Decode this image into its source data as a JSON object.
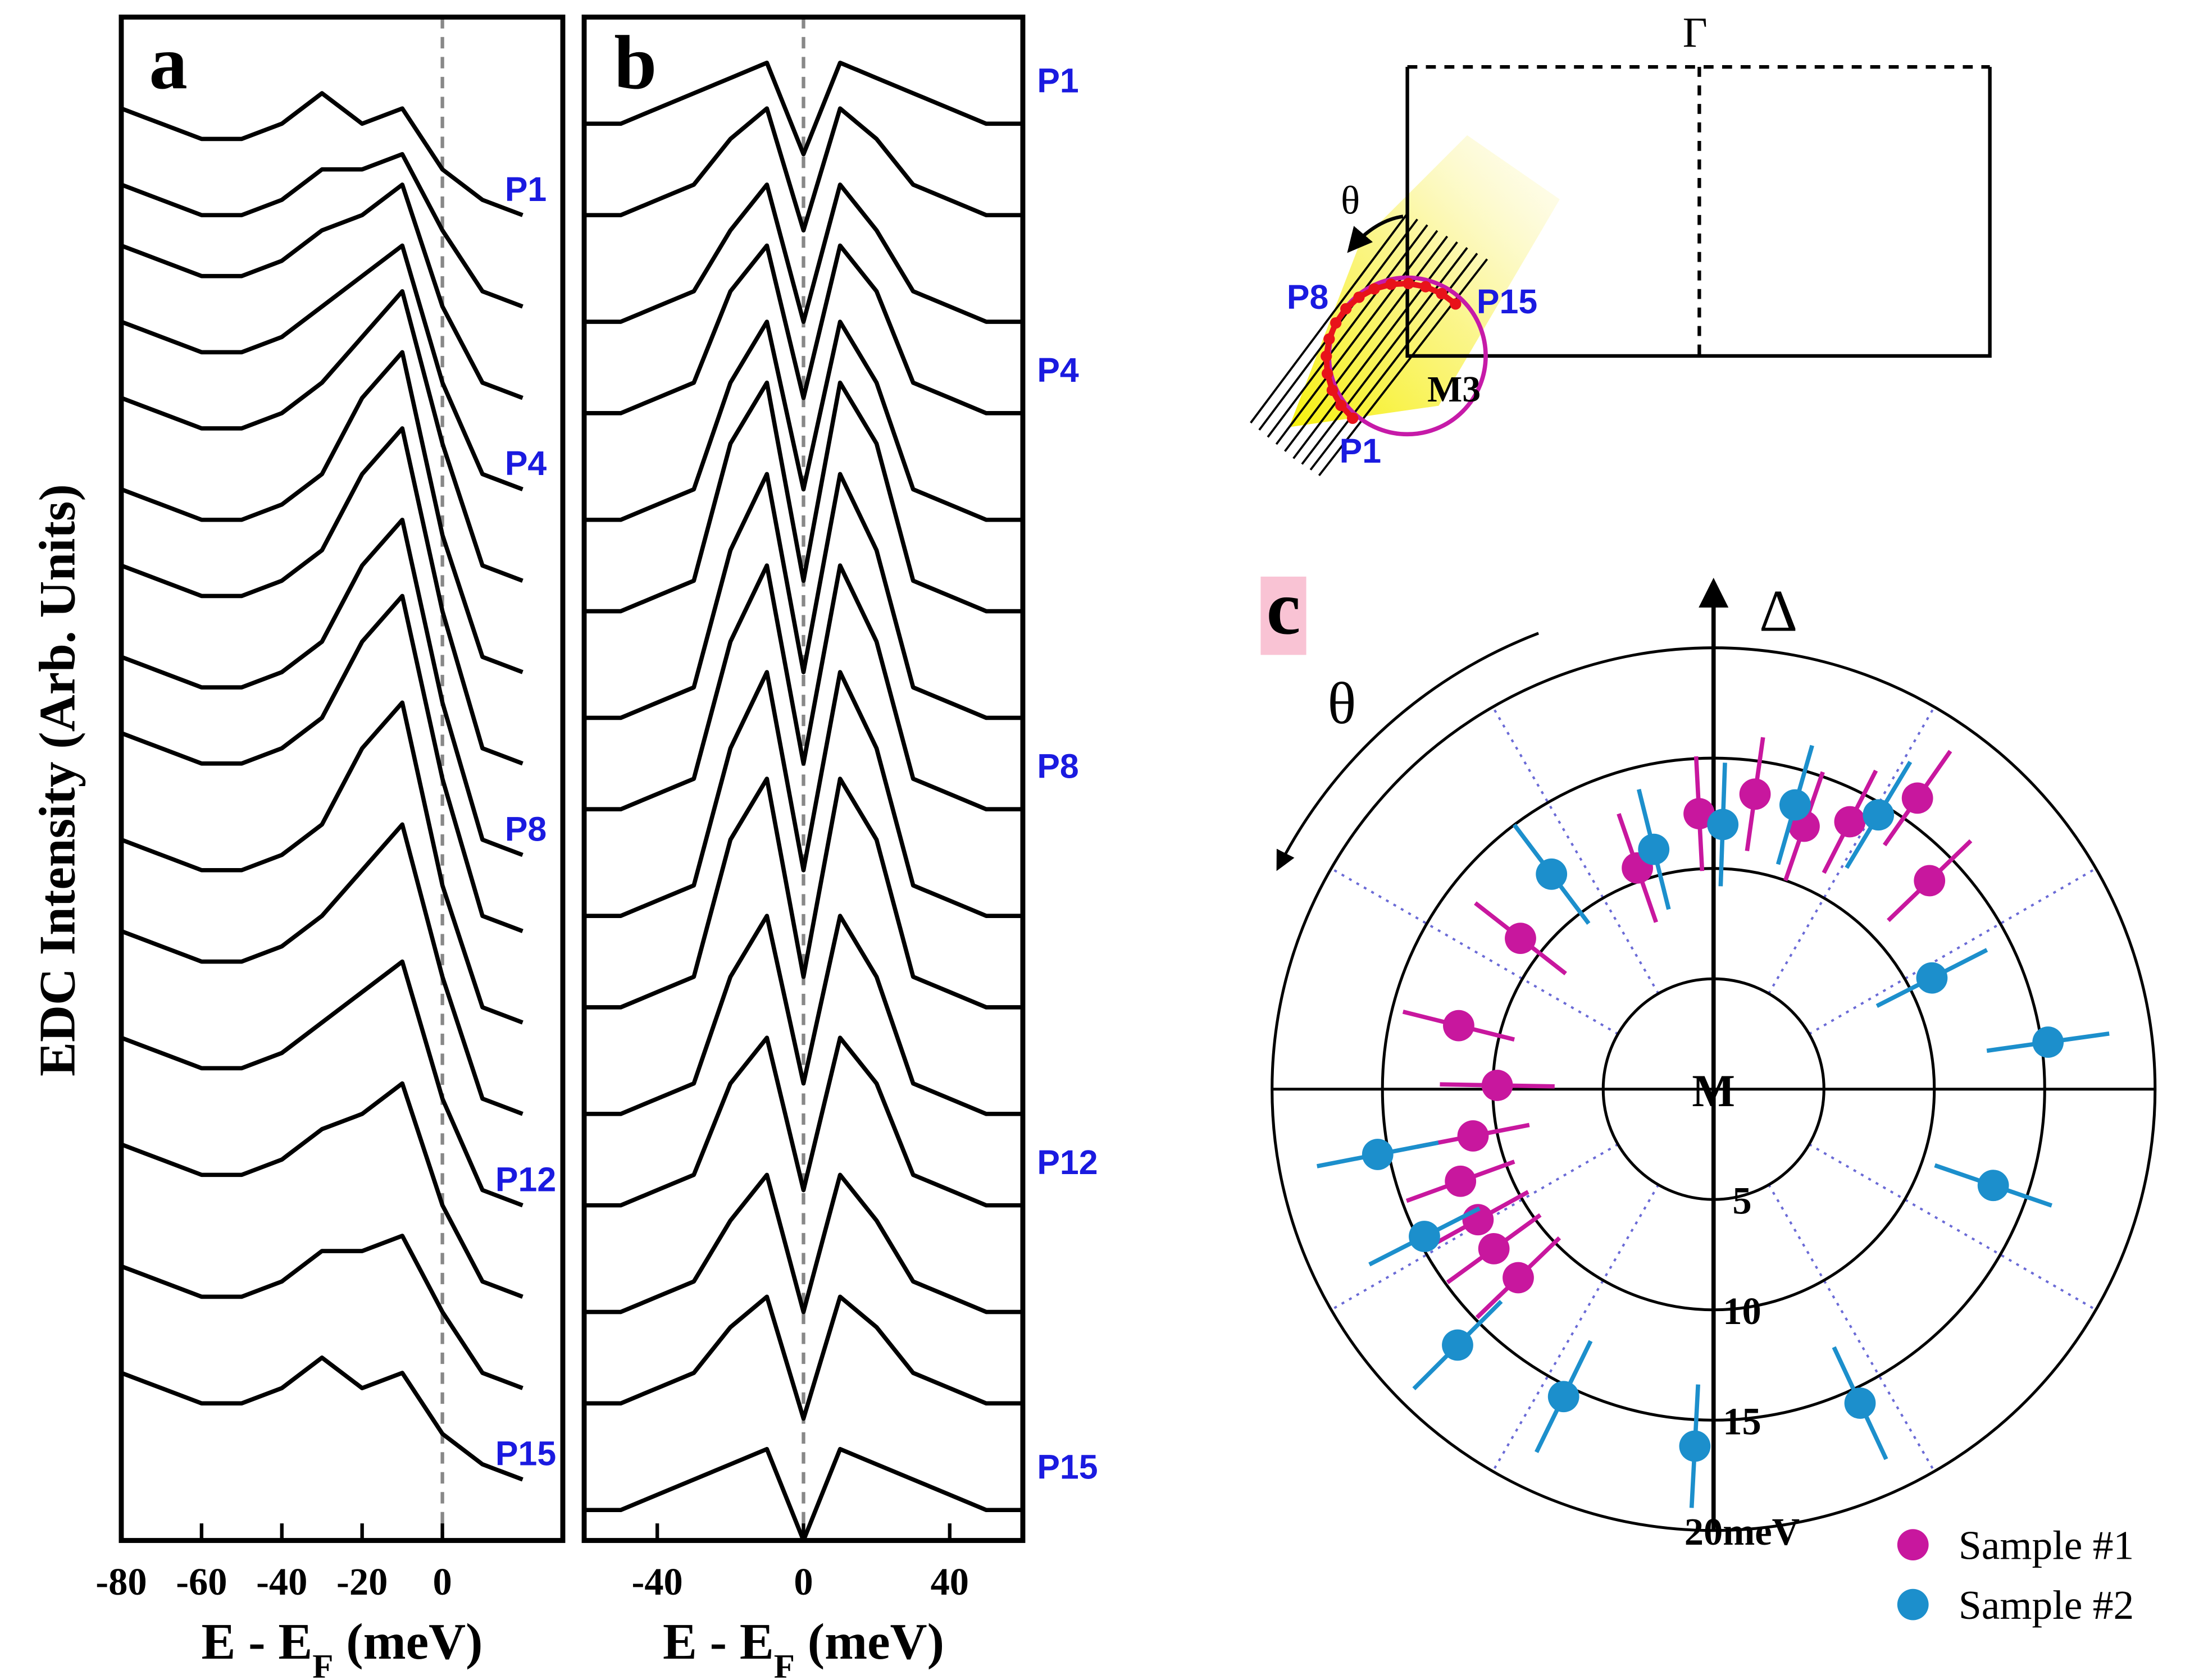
{
  "chart_data": [
    {
      "type": "line",
      "label": "a",
      "ylabel": "EDC Intensity (Arb. Units)",
      "xlabel": [
        "E - E",
        "F",
        " (meV)"
      ],
      "x": [
        -80,
        -70,
        -60,
        -50,
        -40,
        -30,
        -20,
        -10,
        0,
        10,
        20
      ],
      "xlim": [
        -80,
        30
      ],
      "xticks": [
        -80,
        -60,
        -40,
        -20,
        0
      ],
      "ylim": [
        0,
        100
      ],
      "vline": 0,
      "color": "#000000",
      "series": [
        {
          "name": "P1",
          "values": [
            94,
            93,
            92,
            92,
            93,
            95,
            93,
            94,
            90,
            88,
            87
          ]
        },
        {
          "values": [
            89,
            88,
            87,
            87,
            88,
            90,
            90,
            91,
            86,
            82,
            81
          ]
        },
        {
          "values": [
            85,
            84,
            83,
            83,
            84,
            86,
            87,
            89,
            81,
            76,
            75
          ]
        },
        {
          "name": "P4",
          "values": [
            80,
            79,
            78,
            78,
            79,
            81,
            83,
            85,
            76,
            70,
            69
          ]
        },
        {
          "values": [
            75,
            74,
            73,
            73,
            74,
            76,
            79,
            82,
            72,
            64,
            63
          ]
        },
        {
          "values": [
            69,
            68,
            67,
            67,
            68,
            70,
            75,
            78,
            66,
            58,
            57
          ]
        },
        {
          "values": [
            64,
            63,
            62,
            62,
            63,
            65,
            70,
            73,
            61,
            52,
            51
          ]
        },
        {
          "name": "P8",
          "values": [
            58,
            57,
            56,
            56,
            57,
            59,
            64,
            67,
            55,
            46,
            45
          ]
        },
        {
          "values": [
            53,
            52,
            51,
            51,
            52,
            54,
            59,
            62,
            50,
            41,
            40
          ]
        },
        {
          "values": [
            46,
            45,
            44,
            44,
            45,
            47,
            52,
            55,
            43,
            35,
            34
          ]
        },
        {
          "values": [
            40,
            39,
            38,
            38,
            39,
            41,
            44,
            47,
            37,
            29,
            28
          ]
        },
        {
          "name": "P12",
          "values": [
            33,
            32,
            31,
            31,
            32,
            34,
            36,
            38,
            29,
            23,
            22
          ]
        },
        {
          "values": [
            26,
            25,
            24,
            24,
            25,
            27,
            28,
            30,
            22,
            17,
            16
          ]
        },
        {
          "values": [
            18,
            17,
            16,
            16,
            17,
            19,
            19,
            20,
            15,
            11,
            10
          ]
        },
        {
          "name": "P15",
          "values": [
            11,
            10,
            9,
            9,
            10,
            12,
            10,
            11,
            7,
            5,
            4
          ]
        }
      ]
    },
    {
      "type": "line",
      "label": "b",
      "xlabel": [
        "E - E",
        "F",
        " (meV)"
      ],
      "x": [
        -60,
        -50,
        -40,
        -30,
        -20,
        -10,
        0,
        10,
        20,
        30,
        40,
        50,
        60
      ],
      "xlim": [
        -60,
        60
      ],
      "xticks": [
        -40,
        0,
        40
      ],
      "ylim": [
        0,
        100
      ],
      "vline": 0,
      "color": "#000000",
      "series": [
        {
          "name": "P1",
          "values": [
            93,
            93,
            94,
            95,
            96,
            97,
            91,
            97,
            96,
            95,
            94,
            93,
            93
          ]
        },
        {
          "values": [
            87,
            87,
            88,
            89,
            92,
            94,
            86,
            94,
            92,
            89,
            88,
            87,
            87
          ]
        },
        {
          "values": [
            80,
            80,
            81,
            82,
            86,
            89,
            80,
            89,
            86,
            82,
            81,
            80,
            80
          ]
        },
        {
          "name": "P4",
          "values": [
            74,
            74,
            75,
            76,
            82,
            85,
            75,
            85,
            82,
            76,
            75,
            74,
            74
          ]
        },
        {
          "values": [
            67,
            67,
            68,
            69,
            76,
            80,
            69,
            80,
            76,
            69,
            68,
            67,
            67
          ]
        },
        {
          "values": [
            61,
            61,
            62,
            63,
            72,
            76,
            63,
            76,
            72,
            63,
            62,
            61,
            61
          ]
        },
        {
          "values": [
            54,
            54,
            55,
            56,
            65,
            70,
            57,
            70,
            65,
            56,
            55,
            54,
            54
          ]
        },
        {
          "name": "P8",
          "values": [
            48,
            48,
            49,
            50,
            59,
            64,
            51,
            64,
            59,
            50,
            49,
            48,
            48
          ]
        },
        {
          "values": [
            41,
            41,
            42,
            43,
            52,
            57,
            44,
            57,
            52,
            43,
            42,
            41,
            41
          ]
        },
        {
          "values": [
            35,
            35,
            36,
            37,
            46,
            50,
            37,
            50,
            46,
            37,
            36,
            35,
            35
          ]
        },
        {
          "values": [
            28,
            28,
            29,
            30,
            37,
            41,
            30,
            41,
            37,
            30,
            29,
            28,
            28
          ]
        },
        {
          "name": "P12",
          "values": [
            22,
            22,
            23,
            24,
            30,
            33,
            23,
            33,
            30,
            24,
            23,
            22,
            22
          ]
        },
        {
          "values": [
            15,
            15,
            16,
            17,
            21,
            24,
            15,
            24,
            21,
            17,
            16,
            15,
            15
          ]
        },
        {
          "values": [
            9,
            9,
            10,
            11,
            14,
            16,
            8,
            16,
            14,
            11,
            10,
            9,
            9
          ]
        },
        {
          "name": "P15",
          "values": [
            2,
            2,
            3,
            4,
            5,
            6,
            0,
            6,
            5,
            4,
            3,
            2,
            2
          ]
        }
      ]
    },
    {
      "type": "polar",
      "label": "c",
      "radial_label": "Δ",
      "angular_label": "θ",
      "center_label": "M",
      "rlim": [
        0,
        20
      ],
      "rticks": [
        5,
        10,
        15,
        {
          "value": 20,
          "label": "20meV"
        }
      ],
      "thetagrid": [
        30,
        60,
        120,
        150,
        210,
        240,
        300,
        330
      ],
      "series": [
        {
          "name": "Sample #1",
          "color": "#c8179e",
          "theta": [
            93,
            82,
            71,
            63,
            55,
            44,
            109,
            142,
            166,
            179,
            191,
            200,
            209,
            216,
            224
          ],
          "values": [
            12.5,
            13.5,
            12.6,
            13.6,
            16.1,
            13.6,
            10.6,
            11.1,
            11.9,
            9.8,
            11.1,
            12.2,
            12.2,
            12.3,
            12.3
          ],
          "errors": [
            2.6,
            2.6,
            2.6,
            2.6,
            2.6,
            2.6,
            2.6,
            2.6,
            2.6,
            2.6,
            2.6,
            2.6,
            2.6,
            2.6,
            2.6
          ]
        },
        {
          "name": "Sample #2",
          "color": "#1c8fcc",
          "theta": [
            88,
            74,
            59,
            104,
            127,
            27,
            8,
            341,
            191,
            207,
            225,
            244,
            267,
            295
          ],
          "values": [
            12.0,
            13.4,
            14.5,
            11.2,
            12.2,
            11.1,
            15.3,
            13.4,
            15.5,
            14.7,
            16.4,
            15.5,
            16.2,
            15.7
          ],
          "errors": [
            2.8,
            2.8,
            2.8,
            2.8,
            2.8,
            2.8,
            2.8,
            2.8,
            2.8,
            2.8,
            2.8,
            2.8,
            2.8,
            2.8
          ]
        }
      ]
    }
  ],
  "inset": {
    "gamma": "Γ",
    "corner": "M3",
    "angle": "θ",
    "points": [
      "P1",
      "P8",
      "P15"
    ]
  }
}
